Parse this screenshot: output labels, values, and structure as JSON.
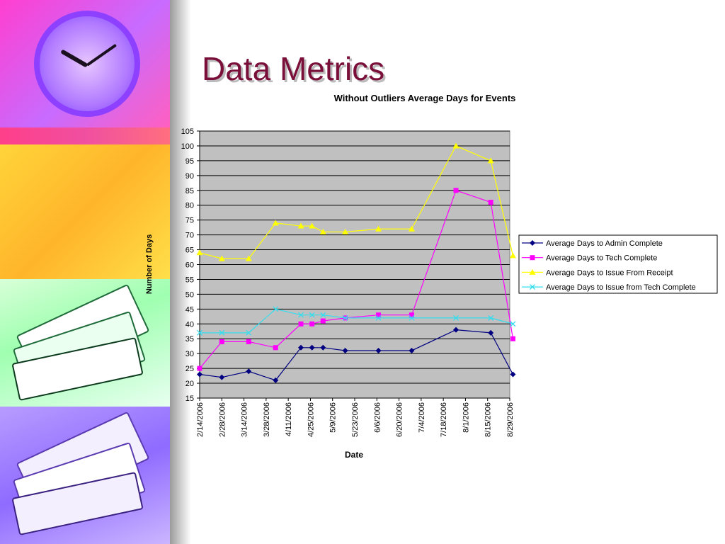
{
  "slide": {
    "title": "Data Metrics"
  },
  "chart_data": {
    "type": "line",
    "title": "Without Outliers Average Days for Events",
    "xlabel": "Date",
    "ylabel": "Number of Days",
    "ylim": [
      15,
      105
    ],
    "ytick_step": 5,
    "x_tick_labels": [
      "2/14/2006",
      "2/28/2006",
      "3/14/2006",
      "3/28/2006",
      "4/11/2006",
      "4/25/2006",
      "5/9/2006",
      "5/23/2006",
      "6/6/2006",
      "6/20/2006",
      "7/4/2006",
      "7/18/2006",
      "8/1/2006",
      "8/15/2006",
      "8/29/2006"
    ],
    "x_range": [
      "2/14/2006",
      "8/29/2006"
    ],
    "grid": true,
    "legend_position": "right",
    "background": "#c0c0c0",
    "series": [
      {
        "name": "Average Days to Admin Complete",
        "color": "#000080",
        "marker": "diamond",
        "x": [
          "2/14/2006",
          "2/28/2006",
          "3/17/2006",
          "4/3/2006",
          "4/19/2006",
          "4/26/2006",
          "5/3/2006",
          "5/17/2006",
          "6/7/2006",
          "6/28/2006",
          "7/26/2006",
          "8/17/2006",
          "8/31/2006"
        ],
        "y": [
          23,
          22,
          24,
          21,
          32,
          32,
          32,
          31,
          31,
          31,
          38,
          37,
          23
        ]
      },
      {
        "name": "Average Days to Tech Complete",
        "color": "#ff00ff",
        "marker": "square",
        "x": [
          "2/14/2006",
          "2/28/2006",
          "3/17/2006",
          "4/3/2006",
          "4/19/2006",
          "4/26/2006",
          "5/3/2006",
          "5/17/2006",
          "6/7/2006",
          "6/28/2006",
          "7/26/2006",
          "8/17/2006",
          "8/31/2006"
        ],
        "y": [
          25,
          34,
          34,
          32,
          40,
          40,
          41,
          42,
          43,
          43,
          85,
          81,
          35
        ]
      },
      {
        "name": "Average Days to Issue From Receipt",
        "color": "#ffff00",
        "marker": "triangle",
        "x": [
          "2/14/2006",
          "2/28/2006",
          "3/17/2006",
          "4/3/2006",
          "4/19/2006",
          "4/26/2006",
          "5/3/2006",
          "5/17/2006",
          "6/7/2006",
          "6/28/2006",
          "7/26/2006",
          "8/17/2006",
          "8/31/2006"
        ],
        "y": [
          64,
          62,
          62,
          74,
          73,
          73,
          71,
          71,
          72,
          72,
          100,
          95,
          63
        ]
      },
      {
        "name": "Average Days to Issue from Tech Complete",
        "color": "#33ddee",
        "marker": "x",
        "x": [
          "2/14/2006",
          "2/28/2006",
          "3/17/2006",
          "4/3/2006",
          "4/19/2006",
          "4/26/2006",
          "5/3/2006",
          "5/17/2006",
          "6/7/2006",
          "6/28/2006",
          "7/26/2006",
          "8/17/2006",
          "8/31/2006"
        ],
        "y": [
          37,
          37,
          37,
          45,
          43,
          43,
          43,
          42,
          42,
          42,
          42,
          42,
          40
        ]
      }
    ]
  }
}
